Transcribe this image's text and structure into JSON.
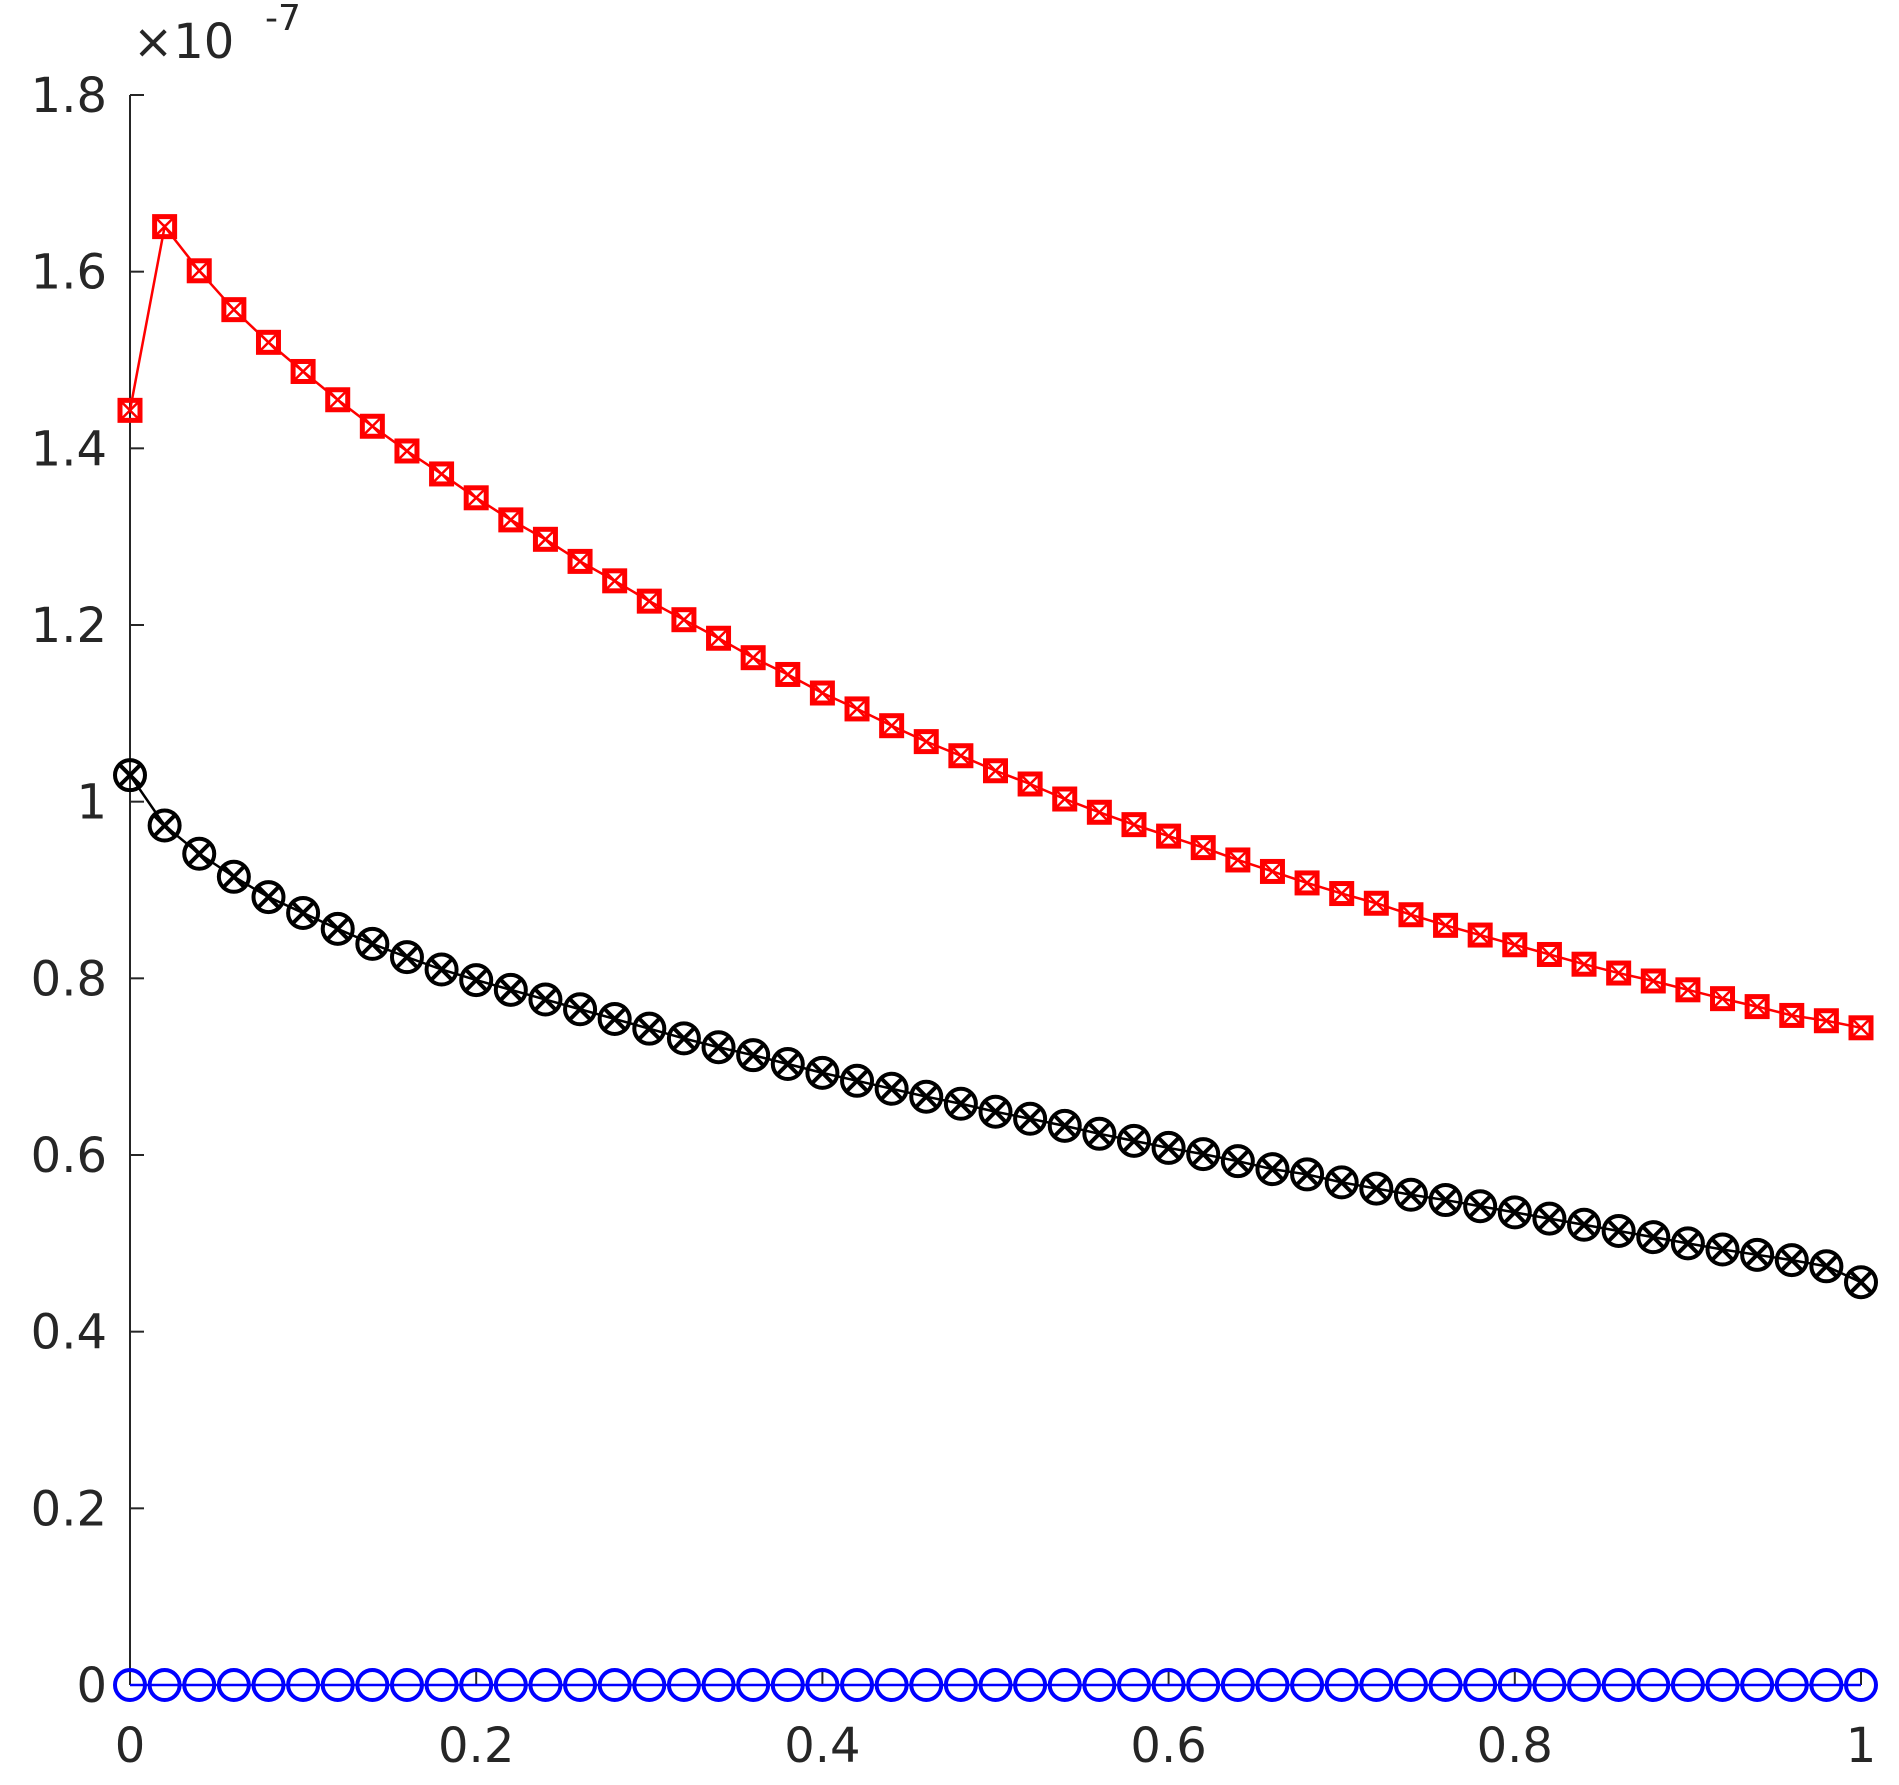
{
  "chart_data": {
    "type": "line",
    "y_exponent": {
      "base": "×10",
      "power": "-7"
    },
    "x": [
      0,
      0.02,
      0.04,
      0.06,
      0.08,
      0.1,
      0.12,
      0.14,
      0.16,
      0.18,
      0.2,
      0.22,
      0.24,
      0.26,
      0.28,
      0.3,
      0.32,
      0.34,
      0.36,
      0.38,
      0.4,
      0.42,
      0.44,
      0.46,
      0.48,
      0.5,
      0.52,
      0.54,
      0.56,
      0.58,
      0.6,
      0.62,
      0.64,
      0.66,
      0.68,
      0.7,
      0.72,
      0.74,
      0.76,
      0.78,
      0.8,
      0.82,
      0.84,
      0.86,
      0.88,
      0.9,
      0.92,
      0.94,
      0.96,
      0.98,
      1
    ],
    "series": [
      {
        "color": "#ff0000",
        "marker": "square-x",
        "values": [
          1.443,
          1.651,
          1.601,
          1.557,
          1.52,
          1.487,
          1.455,
          1.425,
          1.397,
          1.371,
          1.344,
          1.319,
          1.297,
          1.272,
          1.25,
          1.227,
          1.206,
          1.185,
          1.163,
          1.144,
          1.123,
          1.105,
          1.086,
          1.068,
          1.052,
          1.035,
          1.02,
          1.003,
          0.988,
          0.974,
          0.961,
          0.948,
          0.934,
          0.921,
          0.908,
          0.896,
          0.885,
          0.872,
          0.86,
          0.849,
          0.838,
          0.827,
          0.816,
          0.806,
          0.797,
          0.787,
          0.777,
          0.768,
          0.758,
          0.752,
          0.744
        ]
      },
      {
        "color": "#000000",
        "marker": "circle-x",
        "values": [
          1.03,
          0.973,
          0.941,
          0.915,
          0.892,
          0.874,
          0.856,
          0.839,
          0.824,
          0.81,
          0.798,
          0.787,
          0.776,
          0.765,
          0.754,
          0.743,
          0.732,
          0.722,
          0.713,
          0.703,
          0.693,
          0.684,
          0.675,
          0.666,
          0.658,
          0.649,
          0.641,
          0.633,
          0.624,
          0.616,
          0.608,
          0.601,
          0.593,
          0.584,
          0.578,
          0.569,
          0.562,
          0.555,
          0.549,
          0.542,
          0.535,
          0.528,
          0.521,
          0.514,
          0.507,
          0.5,
          0.493,
          0.487,
          0.481,
          0.474,
          0.456
        ]
      },
      {
        "color": "#0000ff",
        "marker": "circle",
        "values": [
          0,
          0,
          0,
          0,
          0,
          0,
          0,
          0,
          0,
          0,
          0,
          0,
          0,
          0,
          0,
          0,
          0,
          0,
          0,
          0,
          0,
          0,
          0,
          0,
          0,
          0,
          0,
          0,
          0,
          0,
          0,
          0,
          0,
          0,
          0,
          0,
          0,
          0,
          0,
          0,
          0,
          0,
          0,
          0,
          0,
          0,
          0,
          0,
          0,
          0,
          0
        ]
      }
    ],
    "xlim": [
      0,
      1
    ],
    "xticks": [
      0,
      0.2,
      0.4,
      0.6,
      0.8,
      1
    ],
    "ylim": [
      0,
      1.8
    ],
    "yticks": [
      0,
      0.2,
      0.4,
      0.6,
      0.8,
      1,
      1.2,
      1.4,
      1.6,
      1.8
    ]
  }
}
